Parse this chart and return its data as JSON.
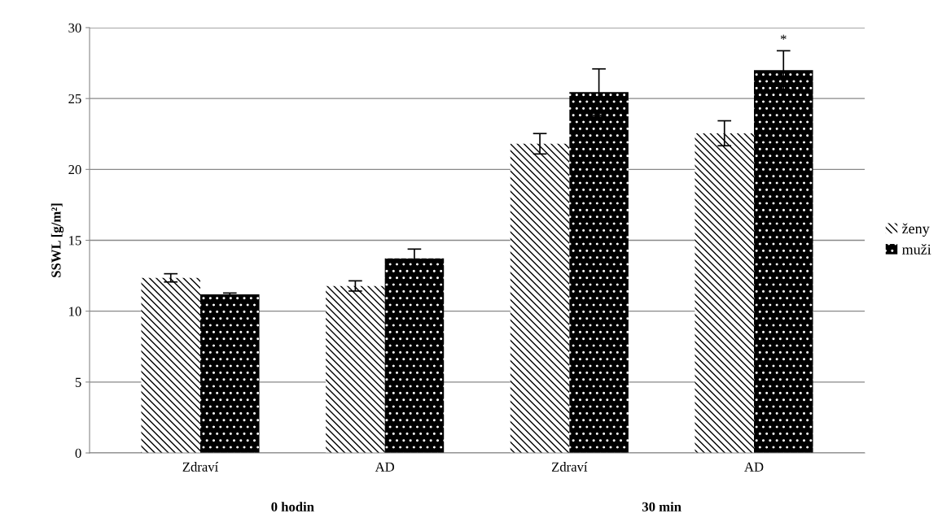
{
  "chart_data": {
    "type": "bar",
    "ylabel": "SSWL [g/m²]",
    "categories": [
      "Zdraví",
      "AD",
      "Zdraví",
      "AD"
    ],
    "series": [
      {
        "name": "ženy",
        "color": "#ffffff",
        "values": [
          12.35,
          11.78,
          21.81,
          22.55
        ],
        "errors": [
          0.29,
          0.36,
          0.72,
          0.88
        ]
      },
      {
        "name": "muži",
        "color": "#000000",
        "values": [
          11.18,
          13.72,
          25.45,
          27.01
        ],
        "errors": [
          0.1,
          0.66,
          1.64,
          1.36
        ]
      }
    ],
    "ylim": [
      0,
      30
    ],
    "yticks": [
      0,
      5,
      10,
      15,
      20,
      25,
      30
    ],
    "grid": "y",
    "legend": "right",
    "annotations": [
      "*",
      "0 hodin",
      "30 min"
    ]
  }
}
